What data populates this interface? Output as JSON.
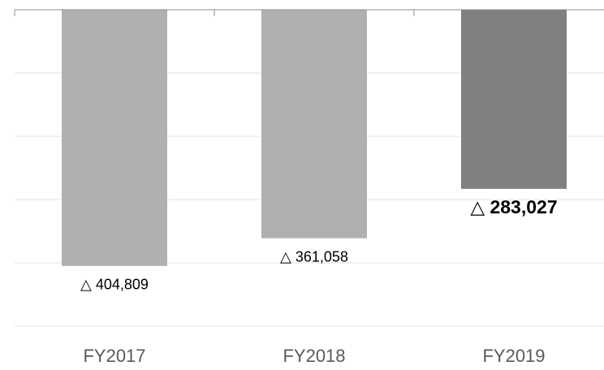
{
  "chart_data": {
    "type": "bar",
    "categories": [
      "FY2017",
      "FY2018",
      "FY2019"
    ],
    "values": [
      -404809,
      -361058,
      -283027
    ],
    "value_labels": [
      "△ 404,809",
      "△ 361,058",
      "△ 283,027"
    ],
    "colors": [
      "#b0b0b0",
      "#b0b0b0",
      "#808080"
    ],
    "emphasis": [
      false,
      false,
      true
    ],
    "ylim": [
      -500000,
      0
    ],
    "yticks": [
      -500000,
      -400000,
      -300000,
      -200000,
      -100000,
      0
    ],
    "grid": true
  }
}
